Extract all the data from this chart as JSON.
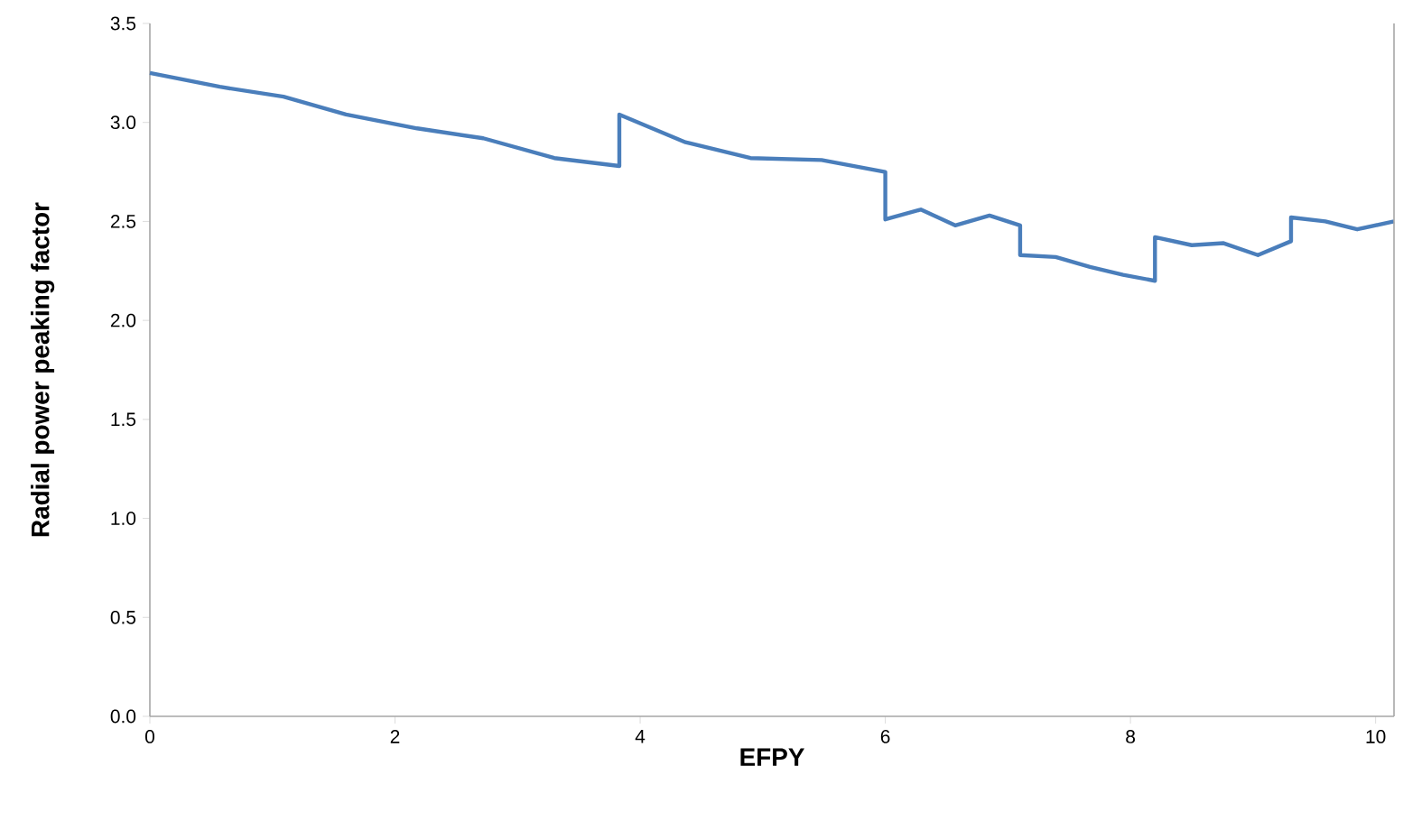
{
  "chart_data": {
    "type": "line",
    "xlabel": "EFPY",
    "ylabel": "Radial power peaking factor",
    "xlim": [
      0,
      10.15
    ],
    "ylim": [
      0,
      3.5
    ],
    "xticks": [
      0,
      2,
      4,
      6,
      8,
      10
    ],
    "yticks": [
      {
        "value": 0,
        "label": "0.0"
      },
      {
        "value": 0.5,
        "label": "0.5"
      },
      {
        "value": 1,
        "label": "1.0"
      },
      {
        "value": 1.5,
        "label": "1.5"
      },
      {
        "value": 2,
        "label": "2.0"
      },
      {
        "value": 2.5,
        "label": "2.5"
      },
      {
        "value": 3,
        "label": "3.0"
      },
      {
        "value": 3.5,
        "label": "3.5"
      }
    ],
    "grid": false,
    "legend": false,
    "marker": "none",
    "line_style": "solid",
    "series": [
      {
        "color": "#4a7ebb",
        "x": [
          0,
          0.57,
          1.09,
          1.6,
          2.18,
          2.72,
          3.3,
          3.83,
          3.83,
          4.37,
          4.9,
          5.48,
          6.0,
          6.0,
          6.29,
          6.57,
          6.85,
          7.1,
          7.1,
          7.39,
          7.67,
          7.94,
          8.2,
          8.2,
          8.5,
          8.76,
          9.04,
          9.31,
          9.31,
          9.59,
          9.85,
          10.15
        ],
        "values": [
          3.25,
          3.18,
          3.13,
          3.04,
          2.97,
          2.92,
          2.82,
          2.78,
          3.04,
          2.9,
          2.82,
          2.81,
          2.75,
          2.51,
          2.56,
          2.48,
          2.53,
          2.48,
          2.33,
          2.32,
          2.27,
          2.23,
          2.2,
          2.42,
          2.38,
          2.39,
          2.33,
          2.4,
          2.52,
          2.5,
          2.46,
          2.5
        ]
      }
    ]
  }
}
